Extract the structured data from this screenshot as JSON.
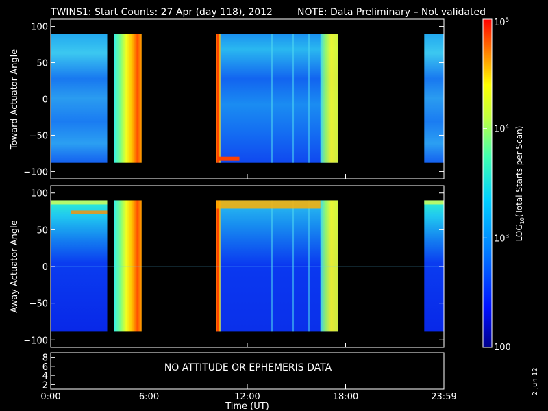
{
  "header": {
    "title": "TWINS1: Start Counts: 27 Apr (day 118), 2012",
    "note": "NOTE: Data Preliminary – Not validated",
    "note_color": "#ff2020",
    "side_stamp": "2 Jun 12"
  },
  "colorbar": {
    "label": "LOG10(Total Starts per Scan)",
    "label_base": "LOG",
    "label_sub": "10",
    "label_rest": "(Total Starts per Scan)",
    "ticks": [
      {
        "value": 100,
        "label": "100"
      },
      {
        "value": 1000,
        "base": "10",
        "exp": "3"
      },
      {
        "value": 10000,
        "base": "10",
        "exp": "4"
      },
      {
        "value": 100000,
        "base": "10",
        "exp": "5"
      }
    ],
    "scale": "log",
    "range": [
      100,
      100000
    ]
  },
  "bottom_panel": {
    "message": "NO ATTITUDE OR EPHEMERIS DATA",
    "y_ticks": [
      "2",
      "4",
      "6",
      "8"
    ],
    "y_values": [
      2,
      4,
      6,
      8
    ]
  },
  "chart_data": [
    {
      "type": "heatmap",
      "panel": "toward",
      "ylabel": "Toward Actuator Angle",
      "ylim": [
        -110,
        110
      ],
      "y_ticks": [
        "−100",
        "−50",
        "0",
        "50",
        "100"
      ],
      "y_tick_values": [
        -100,
        -50,
        0,
        50,
        100
      ],
      "y_data_range": [
        -88,
        90
      ],
      "xlim_hours": [
        0,
        24
      ],
      "data_segments_hours": [
        [
          0.0,
          3.45
        ],
        [
          3.85,
          5.55
        ],
        [
          10.1,
          17.55
        ],
        [
          22.8,
          24.0
        ]
      ],
      "colorscale": "log",
      "value_range": [
        100,
        100000
      ]
    },
    {
      "type": "heatmap",
      "panel": "away",
      "ylabel": "Away Actuator Angle",
      "ylim": [
        -110,
        110
      ],
      "y_ticks": [
        "−100",
        "−50",
        "0",
        "50",
        "100"
      ],
      "y_tick_values": [
        -100,
        -50,
        0,
        50,
        100
      ],
      "y_data_range": [
        -88,
        90
      ],
      "xlim_hours": [
        0,
        24
      ],
      "data_segments_hours": [
        [
          0.0,
          3.45
        ],
        [
          3.85,
          5.55
        ],
        [
          10.1,
          17.55
        ],
        [
          22.8,
          24.0
        ]
      ],
      "colorscale": "log",
      "value_range": [
        100,
        100000
      ]
    }
  ],
  "x_axis": {
    "label": "Time (UT)",
    "ticks": [
      "0:00",
      "6:00",
      "12:00",
      "18:00",
      "23:59"
    ],
    "tick_hours": [
      0,
      6,
      12,
      18,
      24
    ]
  }
}
